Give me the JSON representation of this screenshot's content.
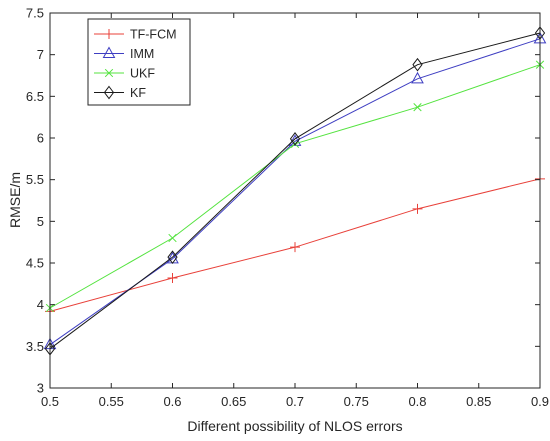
{
  "chart_data": {
    "type": "line",
    "title": "",
    "xlabel": "Different possibility of NLOS errors",
    "ylabel": "RMSE/m",
    "xlim": [
      0.5,
      0.9
    ],
    "ylim": [
      3,
      7.5
    ],
    "xticks": [
      0.5,
      0.55,
      0.6,
      0.65,
      0.7,
      0.75,
      0.8,
      0.85,
      0.9
    ],
    "xtick_labels": [
      "0.5",
      "0.55",
      "0.6",
      "0.65",
      "0.7",
      "0.75",
      "0.8",
      "0.85",
      "0.9"
    ],
    "yticks": [
      3,
      3.5,
      4,
      4.5,
      5,
      5.5,
      6,
      6.5,
      7,
      7.5
    ],
    "ytick_labels": [
      "3",
      "3.5",
      "4",
      "4.5",
      "5",
      "5.5",
      "6",
      "6.5",
      "7",
      "7.5"
    ],
    "grid": false,
    "legend_position": "top-left",
    "x": [
      0.5,
      0.6,
      0.7,
      0.8,
      0.9
    ],
    "series": [
      {
        "name": "TF-FCM",
        "values": [
          3.92,
          4.32,
          4.69,
          5.15,
          5.51
        ],
        "color": "#e8413a",
        "marker": "plus"
      },
      {
        "name": "IMM",
        "values": [
          3.52,
          4.55,
          5.96,
          6.71,
          7.19
        ],
        "color": "#3e3ec2",
        "marker": "triangle"
      },
      {
        "name": "UKF",
        "values": [
          3.96,
          4.8,
          5.93,
          6.37,
          6.88
        ],
        "color": "#54e33f",
        "marker": "cross"
      },
      {
        "name": "KF",
        "values": [
          3.47,
          4.57,
          5.99,
          6.88,
          7.26
        ],
        "color": "#1a1a1a",
        "marker": "diamond"
      }
    ]
  }
}
